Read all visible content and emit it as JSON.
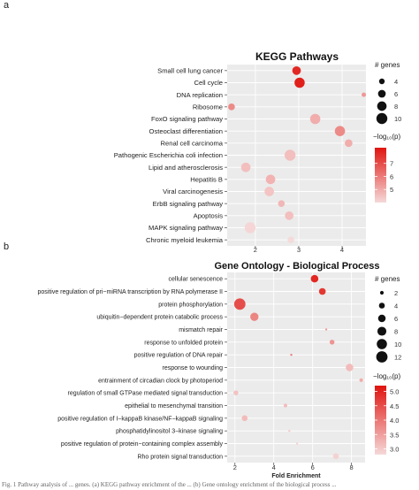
{
  "figure": {
    "panel_a": "a",
    "panel_b": "b",
    "caption": "Fig. 1 Pathway analysis of ... genes. (a) KEGG pathway enrichment of the ... (b) Gene ontology enrichment of the biological process ..."
  },
  "colors": {
    "low": "#f5d9d9",
    "high": "#e0140f",
    "panel_bg": "#ebebeb",
    "grid": "#ffffff"
  },
  "chart_data": [
    {
      "type": "scatter",
      "title": "KEGG Pathways",
      "xlabel": "",
      "ylabel": "",
      "xlim": [
        1.35,
        4.55
      ],
      "xticks": [
        2,
        3,
        4
      ],
      "grid": true,
      "legend_position": "right",
      "size_legend": {
        "title": "# genes",
        "values": [
          4,
          6,
          8,
          10
        ]
      },
      "color_legend": {
        "title": "−log₁₀(p)",
        "range": [
          4,
          8.2
        ],
        "ticks": [
          5,
          6,
          7
        ]
      },
      "categories": [
        "Small cell lung cancer",
        "Cell cycle",
        "DNA replication",
        "Ribosome",
        "FoxO signaling pathway",
        "Osteoclast differentiation",
        "Renal cell carcinoma",
        "Pathogenic Escherichia coli infection",
        "Lipid and atherosclerosis",
        "Hepatitis B",
        "Viral carcinogenesis",
        "ErbB signaling pathway",
        "Apoptosis",
        "MAPK signaling pathway",
        "Chronic myeloid leukemia"
      ],
      "points": [
        {
          "category": "Small cell lung cancer",
          "x": 2.95,
          "genes": 7,
          "neglog10p": 8.0
        },
        {
          "category": "Cell cycle",
          "x": 3.02,
          "genes": 9,
          "neglog10p": 8.2
        },
        {
          "category": "DNA replication",
          "x": 4.5,
          "genes": 3,
          "neglog10p": 5.5
        },
        {
          "category": "Ribosome",
          "x": 1.45,
          "genes": 5,
          "neglog10p": 5.8
        },
        {
          "category": "FoxO signaling pathway",
          "x": 3.38,
          "genes": 9,
          "neglog10p": 5.0
        },
        {
          "category": "Osteoclast differentiation",
          "x": 3.95,
          "genes": 9,
          "neglog10p": 5.8
        },
        {
          "category": "Renal cell carcinoma",
          "x": 4.15,
          "genes": 6,
          "neglog10p": 5.0
        },
        {
          "category": "Pathogenic Escherichia coli infection",
          "x": 2.8,
          "genes": 10,
          "neglog10p": 4.6
        },
        {
          "category": "Lipid and atherosclerosis",
          "x": 1.78,
          "genes": 8,
          "neglog10p": 4.6
        },
        {
          "category": "Hepatitis B",
          "x": 2.35,
          "genes": 8,
          "neglog10p": 4.9
        },
        {
          "category": "Viral carcinogenesis",
          "x": 2.32,
          "genes": 8,
          "neglog10p": 4.5
        },
        {
          "category": "ErbB signaling pathway",
          "x": 2.6,
          "genes": 5,
          "neglog10p": 4.8
        },
        {
          "category": "Apoptosis",
          "x": 2.78,
          "genes": 7,
          "neglog10p": 4.6
        },
        {
          "category": "MAPK signaling pathway",
          "x": 1.88,
          "genes": 10,
          "neglog10p": 4.1
        },
        {
          "category": "Chronic myeloid leukemia",
          "x": 2.82,
          "genes": 5,
          "neglog10p": 4.0
        }
      ]
    },
    {
      "type": "scatter",
      "title": "Gene Ontology - Biological Process",
      "xlabel": "Fold Enrichment",
      "ylabel": "",
      "xlim": [
        1.6,
        8.7
      ],
      "xticks": [
        2,
        4,
        6,
        8
      ],
      "grid": true,
      "legend_position": "right",
      "size_legend": {
        "title": "# genes",
        "values": [
          2,
          4,
          6,
          8,
          10,
          12
        ]
      },
      "color_legend": {
        "title": "−log₁₀(p)",
        "range": [
          2.8,
          5.2
        ],
        "ticks": [
          3.0,
          3.5,
          4.0,
          4.5,
          5.0
        ]
      },
      "categories": [
        "cellular senescence",
        "positive regulation of pri−miRNA transcription by RNA polymerase II",
        "protein phosphorylation",
        "ubiquitin−dependent protein catabolic process",
        "mismatch repair",
        "response to unfolded protein",
        "positive regulation of DNA repair",
        "response to wounding",
        "entrainment of circadian clock by photoperiod",
        "regulation of small GTPase mediated signal transduction",
        "epithelial to mesenchymal transition",
        "positive regulation of I−kappaB kinase/NF−kappaB signaling",
        "phosphatidylinositol 3−kinase signaling",
        "positive regulation of protein−containing complex assembly",
        "Rho protein signal transduction"
      ],
      "points": [
        {
          "category": "cellular senescence",
          "x": 6.1,
          "genes": 6,
          "neglog10p": 5.1
        },
        {
          "category": "positive regulation of pri−miRNA transcription by RNA polymerase II",
          "x": 6.5,
          "genes": 5,
          "neglog10p": 4.9
        },
        {
          "category": "protein phosphorylation",
          "x": 2.25,
          "genes": 12,
          "neglog10p": 4.6
        },
        {
          "category": "ubiquitin−dependent protein catabolic process",
          "x": 3.0,
          "genes": 7,
          "neglog10p": 3.9
        },
        {
          "category": "mismatch repair",
          "x": 6.7,
          "genes": 1,
          "neglog10p": 3.6
        },
        {
          "category": "response to unfolded protein",
          "x": 7.0,
          "genes": 3,
          "neglog10p": 3.7
        },
        {
          "category": "positive regulation of DNA repair",
          "x": 4.9,
          "genes": 1,
          "neglog10p": 4.0
        },
        {
          "category": "response to wounding",
          "x": 7.9,
          "genes": 6,
          "neglog10p": 3.2
        },
        {
          "category": "entrainment of circadian clock by photoperiod",
          "x": 8.5,
          "genes": 2,
          "neglog10p": 3.4
        },
        {
          "category": "regulation of small GTPase mediated signal transduction",
          "x": 2.05,
          "genes": 3,
          "neglog10p": 3.1
        },
        {
          "category": "epithelial to mesenchymal transition",
          "x": 4.6,
          "genes": 2,
          "neglog10p": 3.2
        },
        {
          "category": "positive regulation of I−kappaB kinase/NF−kappaB signaling",
          "x": 2.5,
          "genes": 4,
          "neglog10p": 3.2
        },
        {
          "category": "phosphatidylinositol 3−kinase signaling",
          "x": 4.8,
          "genes": 1,
          "neglog10p": 3.0
        },
        {
          "category": "positive regulation of protein−containing complex assembly",
          "x": 5.2,
          "genes": 1,
          "neglog10p": 2.9
        },
        {
          "category": "Rho protein signal transduction",
          "x": 7.2,
          "genes": 4,
          "neglog10p": 2.9
        }
      ]
    }
  ]
}
